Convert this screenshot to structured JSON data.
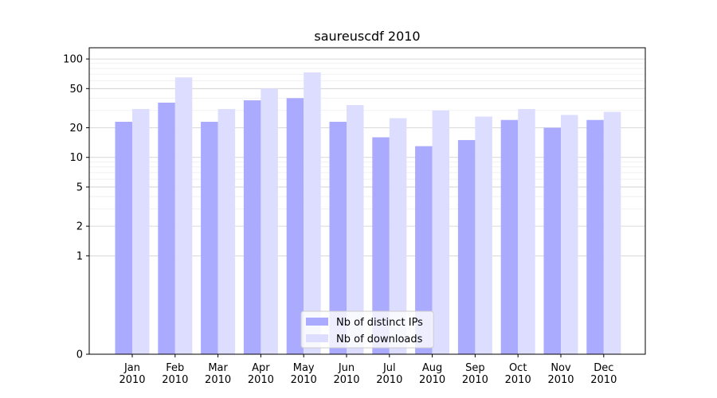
{
  "chart_data": {
    "type": "bar",
    "title": "saureuscdf 2010",
    "xlabel": "",
    "ylabel": "",
    "yscale": "symlog",
    "ylim": [
      0,
      130
    ],
    "yticks": [
      0,
      1,
      2,
      5,
      10,
      20,
      50,
      100
    ],
    "grid": true,
    "legend_position": "bottom-center",
    "categories": [
      "Jan\n2010",
      "Feb\n2010",
      "Mar\n2010",
      "Apr\n2010",
      "May\n2010",
      "Jun\n2010",
      "Jul\n2010",
      "Aug\n2010",
      "Sep\n2010",
      "Oct\n2010",
      "Nov\n2010",
      "Dec\n2010"
    ],
    "series": [
      {
        "name": "Nb of distinct IPs",
        "color": "#aaaaff",
        "values": [
          23,
          36,
          23,
          38,
          40,
          23,
          16,
          13,
          15,
          24,
          20,
          24
        ]
      },
      {
        "name": "Nb of downloads",
        "color": "#ddddff",
        "values": [
          31,
          65,
          31,
          50,
          73,
          34,
          25,
          30,
          26,
          31,
          27,
          29
        ]
      }
    ]
  }
}
